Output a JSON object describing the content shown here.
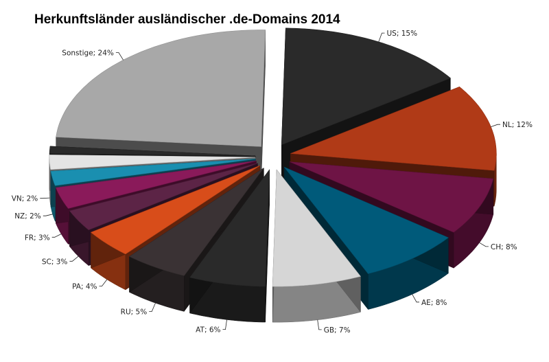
{
  "chart_data": {
    "type": "pie",
    "title": "Herkunftsländer ausländischer .de-Domains 2014",
    "slices": [
      {
        "label": "US; 15%",
        "country": "US",
        "value": 15,
        "color": "#2a2a2a"
      },
      {
        "label": "NL; 12%",
        "country": "NL",
        "value": 12,
        "color": "#b03a17"
      },
      {
        "label": "CH; 8%",
        "country": "CH",
        "value": 8,
        "color": "#6e1445"
      },
      {
        "label": "AE; 8%",
        "country": "AE",
        "value": 8,
        "color": "#005a7a"
      },
      {
        "label": "GB; 7%",
        "country": "GB",
        "value": 7,
        "color": "#d6d6d6"
      },
      {
        "label": "AT; 6%",
        "country": "AT",
        "value": 6,
        "color": "#2a2a2a"
      },
      {
        "label": "RU; 5%",
        "country": "RU",
        "value": 5,
        "color": "#3a3234"
      },
      {
        "label": "PA; 4%",
        "country": "PA",
        "value": 4,
        "color": "#d84d1a"
      },
      {
        "label": "SC; 3%",
        "country": "SC",
        "value": 3,
        "color": "#5c2446"
      },
      {
        "label": "FR; 3%",
        "country": "FR",
        "value": 3,
        "color": "#8a1a5a"
      },
      {
        "label": "NZ; 2%",
        "country": "NZ",
        "value": 2,
        "color": "#1a8fb0"
      },
      {
        "label": "VN; 2%",
        "country": "VN",
        "value": 2,
        "color": "#e4e4e4"
      },
      {
        "label": "",
        "country": "",
        "value": 1,
        "color": "#2a2a2a"
      },
      {
        "label": "Sonstige; 24%",
        "country": "Sonstige",
        "value": 24,
        "color": "#a8a8a8"
      }
    ],
    "style": "exploded-3d",
    "legend": "none"
  }
}
